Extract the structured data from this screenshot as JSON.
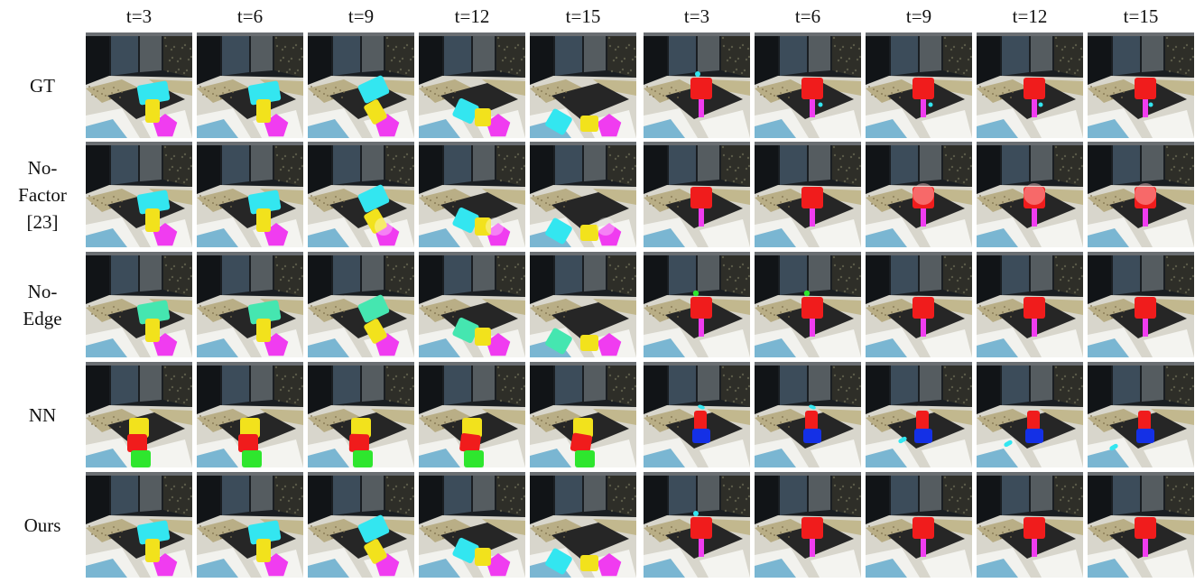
{
  "column_headers": [
    "t=3",
    "t=6",
    "t=9",
    "t=12",
    "t=15",
    "t=3",
    "t=6",
    "t=9",
    "t=12",
    "t=15"
  ],
  "row_labels": [
    [
      "GT"
    ],
    [
      "No-",
      "Factor",
      "[23]"
    ],
    [
      "No-",
      "Edge"
    ],
    [
      "NN"
    ],
    [
      "Ours"
    ]
  ],
  "colors": {
    "cyan": "#33e6f0",
    "yellow": "#f2e21c",
    "magenta": "#f03cf0",
    "red": "#f01c1c",
    "green": "#2ee62e",
    "blue": "#1430e6",
    "mint": "#45e6b0"
  }
}
